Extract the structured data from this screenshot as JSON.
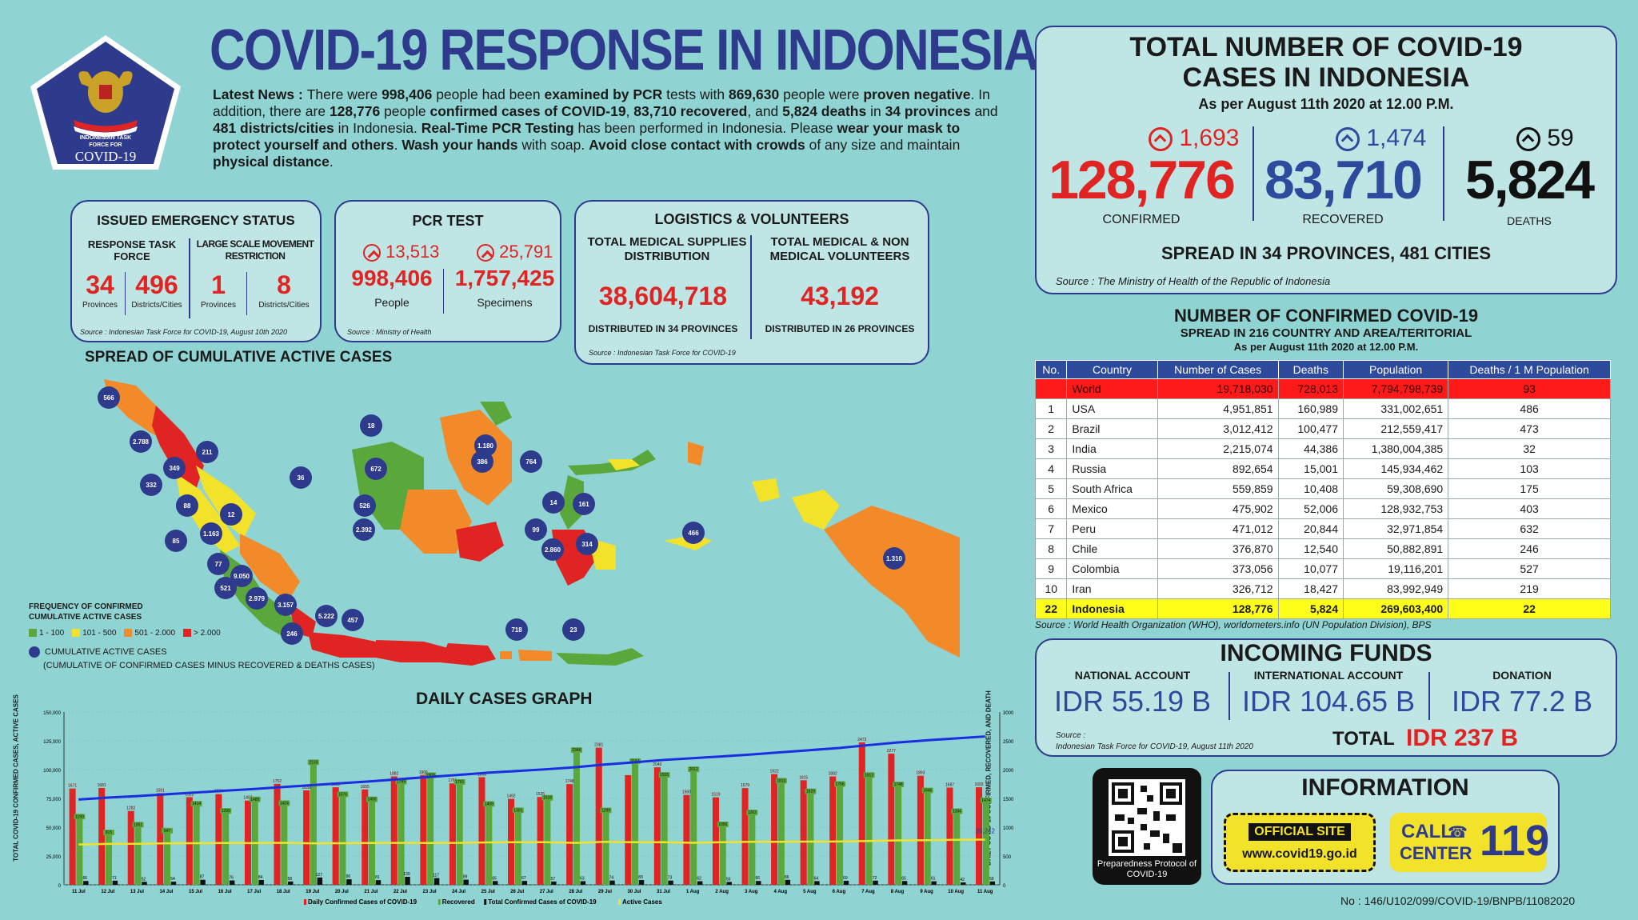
{
  "header": {
    "title": "COVID-19 RESPONSE IN INDONESIA",
    "logo_line1": "INDONESIAN TASK",
    "logo_line2": "FORCE FOR",
    "logo_line3": "COVID-19"
  },
  "news": {
    "lead": "Latest News : ",
    "p1": "There were ",
    "pcr_people": "998,406",
    "p2": " people had been ",
    "examined": "examined by PCR",
    "p3": " tests with ",
    "negative_count": "869,630",
    "p4": " people were ",
    "proven_negative": "proven negative",
    "p5": ". In addition, there are ",
    "confirmed": "128,776",
    "p6": " people ",
    "confirmed_cases_label": "confirmed cases of COVID-19",
    "p7": ", ",
    "recovered": "83,710 recovered",
    "p8": ", and ",
    "deaths": "5,824 deaths",
    "p9": " in ",
    "provinces": "34 provinces",
    "p10": " and ",
    "cities": "481 districts/cities",
    "p11": " in Indonesia. ",
    "rtpcr": "Real-Time PCR Testing",
    "p12": " has been performed in Indonesia. Please ",
    "mask": "wear your mask to protect yourself and others",
    "p13": ". ",
    "wash": "Wash your hands",
    "p14": " with soap. ",
    "avoid": "Avoid close contact with crowds",
    "p15": " of any size and maintain ",
    "distance": "physical distance",
    "p16": "."
  },
  "emergency": {
    "title": "ISSUED EMERGENCY STATUS",
    "col1_label": "RESPONSE TASK FORCE",
    "col2_label": "LARGE SCALE MOVEMENT RESTRICTION",
    "v1": "34",
    "l1": "Provinces",
    "v2": "496",
    "l2": "Districts/Cities",
    "v3": "1",
    "l3": "Provinces",
    "v4": "8",
    "l4": "Districts/Cities",
    "source": "Source : Indonesian Task Force for COVID-19, August 10th 2020"
  },
  "pcr": {
    "title": "PCR TEST",
    "people_change": "13,513",
    "people": "998,406",
    "people_label": "People",
    "spec_change": "25,791",
    "specimens": "1,757,425",
    "spec_label": "Specimens",
    "source": "Source : Ministry of Health"
  },
  "logistics": {
    "title": "LOGISTICS & VOLUNTEERS",
    "col1_label": "TOTAL MEDICAL SUPPLIES DISTRIBUTION",
    "col1_value": "38,604,718",
    "col1_note": "DISTRIBUTED IN 34 PROVINCES",
    "col2_label": "TOTAL MEDICAL & NON MEDICAL VOLUNTEERS",
    "col2_value": "43,192",
    "col2_note": "DISTRIBUTED IN 26 PROVINCES",
    "source": "Source : Indonesian Task Force for COVID-19"
  },
  "totals": {
    "title_line1": "TOTAL NUMBER OF COVID-19",
    "title_line2": "CASES IN INDONESIA",
    "as_of": "As per August 11th 2020 at 12.00 P.M.",
    "confirmed_change": "1,693",
    "confirmed": "128,776",
    "confirmed_label": "CONFIRMED",
    "recovered_change": "1,474",
    "recovered": "83,710",
    "recovered_label": "RECOVERED",
    "deaths_change": "59",
    "deaths": "5,824",
    "deaths_label": "DEATHS",
    "spread": "SPREAD IN 34 PROVINCES, 481 CITIES",
    "source": "Source : The Ministry of Health of the Republic of Indonesia"
  },
  "world_table": {
    "title": "NUMBER OF CONFIRMED COVID-19",
    "subtitle": "SPREAD IN 216 COUNTRY AND AREA/TERITORIAL",
    "as_of": "As per August 11th 2020 at 12.00 P.M.",
    "headers": [
      "No.",
      "Country",
      "Number of Cases",
      "Deaths",
      "Population",
      "Deaths / 1 M Population"
    ],
    "world": [
      "",
      "World",
      "19,718,030",
      "728,013",
      "7,794,798,739",
      "93"
    ],
    "rows": [
      [
        "1",
        "USA",
        "4,951,851",
        "160,989",
        "331,002,651",
        "486"
      ],
      [
        "2",
        "Brazil",
        "3,012,412",
        "100,477",
        "212,559,417",
        "473"
      ],
      [
        "3",
        "India",
        "2,215,074",
        "44,386",
        "1,380,004,385",
        "32"
      ],
      [
        "4",
        "Russia",
        "892,654",
        "15,001",
        "145,934,462",
        "103"
      ],
      [
        "5",
        "South Africa",
        "559,859",
        "10,408",
        "59,308,690",
        "175"
      ],
      [
        "6",
        "Mexico",
        "475,902",
        "52,006",
        "128,932,753",
        "403"
      ],
      [
        "7",
        "Peru",
        "471,012",
        "20,844",
        "32,971,854",
        "632"
      ],
      [
        "8",
        "Chile",
        "376,870",
        "12,540",
        "50,882,891",
        "246"
      ],
      [
        "9",
        "Colombia",
        "373,056",
        "10,077",
        "19,116,201",
        "527"
      ],
      [
        "10",
        "Iran",
        "326,712",
        "18,427",
        "83,992,949",
        "219"
      ]
    ],
    "indonesia": [
      "22",
      "Indonesia",
      "128,776",
      "5,824",
      "269,603,400",
      "22"
    ],
    "source": "Source : World Health Organization (WHO), worldometers.info (UN Population Division), BPS"
  },
  "funds": {
    "title": "INCOMING FUNDS",
    "national_label": "NATIONAL ACCOUNT",
    "national": "IDR 55.19 B",
    "international_label": "INTERNATIONAL ACCOUNT",
    "international": "IDR 104.65 B",
    "donation_label": "DONATION",
    "donation": "IDR 77.2 B",
    "source_line1": "Source :",
    "source_line2": "Indonesian Task Force for COVID-19, August 11th 2020",
    "total_label": "TOTAL",
    "total": "IDR 237 B"
  },
  "info": {
    "qr_caption": "Preparedness Protocol of COVID-19",
    "title": "INFORMATION",
    "official_label": "OFFICIAL SITE",
    "site": "www.covid19.go.id",
    "call_line1": "CALL",
    "call_line2": "CENTER",
    "call_number": "119",
    "doc_number": "No : 146/U102/099/COVID-19/BNPB/11082020"
  },
  "map": {
    "title": "SPREAD OF CUMULATIVE ACTIVE CASES",
    "legend_title_line1": "FREQUENCY OF CONFIRMED",
    "legend_title_line2": "CUMULATIVE ACTIVE CASES",
    "legend_items": [
      {
        "label": "1 - 100",
        "color": "#5aa83c"
      },
      {
        "label": "101 - 500",
        "color": "#f2e22a"
      },
      {
        "label": "501 - 2.000",
        "color": "#f28a2a"
      },
      {
        "label": "> 2.000",
        "color": "#e02424"
      }
    ],
    "circle_label": "CUMULATIVE ACTIVE CASES",
    "circle_note": "(CUMULATIVE OF CONFIRMED CASES MINUS RECOVERED & DEATHS CASES)",
    "bubbles": [
      "566",
      "2.788",
      "211",
      "349",
      "332",
      "88",
      "1.163",
      "85",
      "12",
      "77",
      "9.050",
      "521",
      "2.979",
      "3.157",
      "246",
      "5.222",
      "457",
      "36",
      "526",
      "2.392",
      "18",
      "672",
      "386",
      "1.180",
      "764",
      "14",
      "99",
      "2.860",
      "314",
      "161",
      "466",
      "1.310",
      "718",
      "23"
    ]
  },
  "chart_data": {
    "type": "bar",
    "title": "DAILY CASES GRAPH",
    "ylabel_left": "TOTAL COVID-19 CONFIRMED CASES, ACTIVE CASES",
    "ylabel_right": "DAILY COVID-19 CONFIRMED, RECOVERED, AND DEATH",
    "y_left_ticks": [
      "0",
      "25,000",
      "50,000",
      "75,000",
      "100,000",
      "125,000",
      "150,000"
    ],
    "y_right_ticks": [
      "0",
      "500",
      "1000",
      "1500",
      "2000",
      "2500",
      "3000"
    ],
    "categories": [
      "11 Jul",
      "12 Jul",
      "13 Jul",
      "14 Jul",
      "15 Jul",
      "16 Jul",
      "17 Jul",
      "18 Jul",
      "19 Jul",
      "20 Jul",
      "21 Jul",
      "22 Jul",
      "23 Jul",
      "24 Jul",
      "25 Jul",
      "26 Jul",
      "27 Jul",
      "28 Jul",
      "29 Jul",
      "30 Jul",
      "31 Jul",
      "1 Aug",
      "2 Aug",
      "3 Aug",
      "4 Aug",
      "5 Aug",
      "6 Aug",
      "7 Aug",
      "8 Aug",
      "9 Aug",
      "10 Aug",
      "11 Aug"
    ],
    "series": [
      {
        "name": "Daily Confirmed Cases of COVID-19",
        "color": "#e02424",
        "values": [
          1671,
          1681,
          1282,
          1591,
          1522,
          1574,
          1462,
          1752,
          1639,
          1693,
          1655,
          1882,
          1906,
          1761,
          1868,
          1492,
          1525,
          1748,
          2381,
          1904,
          2040,
          1560,
          1519,
          1679,
          1922,
          1815,
          1882,
          2473,
          2277,
          1893,
          1687,
          1693
        ],
        "labels": [
          "1671",
          "1681",
          "1282",
          "1591",
          "1522",
          "1574",
          "1462",
          "1752",
          "1639",
          "1693",
          "1655",
          "1882",
          "1906",
          "1761",
          "1868",
          "1492",
          "1525",
          "1748",
          "2381",
          "",
          "2040",
          "1560",
          "1519",
          "1679",
          "1922",
          "1815",
          "1882",
          "2473",
          "2277",
          "1893",
          "1687",
          "1693"
        ]
      },
      {
        "name": "Recovered",
        "color": "#5aa83c",
        "values": [
          1190,
          915,
          1051,
          947,
          1414,
          1290,
          1489,
          1424,
          2133,
          1576,
          1490,
          1799,
          1909,
          1791,
          1409,
          1301,
          1518,
          2346,
          1299,
          2154,
          1915,
          2012,
          1056,
          1262,
          1813,
          1629,
          1756,
          1912,
          1748,
          1646,
          1284,
          1474
        ],
        "labels": [
          "1190",
          "915",
          "1051",
          "947",
          "1414",
          "1290",
          "1489",
          "1424",
          "2133",
          "1576",
          "1490",
          "1799",
          "1909",
          "1791",
          "1409",
          "1301",
          "1518",
          "2346",
          "1299",
          "2154",
          "1915",
          "2012",
          "1056",
          "1262",
          "1813",
          "1629",
          "1756",
          "1912",
          "1748",
          "1646",
          "1284",
          "1474"
        ]
      },
      {
        "name": "Deaths",
        "color": "#111111",
        "values": [
          66,
          71,
          52,
          54,
          87,
          76,
          84,
          58,
          127,
          96,
          81,
          139,
          117,
          89,
          65,
          67,
          57,
          63,
          74,
          83,
          73,
          62,
          50,
          66,
          86,
          64,
          69,
          72,
          65,
          61,
          42,
          59
        ],
        "labels": [
          "66",
          "71",
          "52",
          "54",
          "87",
          "76",
          "84",
          "58",
          "127",
          "96",
          "81",
          "139",
          "117",
          "89",
          "65",
          "67",
          "57",
          "63",
          "74",
          "83",
          "73",
          "62",
          "50",
          "66",
          "86",
          "64",
          "69",
          "72",
          "65",
          "61",
          "42",
          "59"
        ]
      },
      {
        "name": "Total Confirmed Cases of COVID-19",
        "color": "#1a2ee0",
        "axis": "left",
        "values": [
          74018,
          75699,
          76981,
          78572,
          80094,
          81668,
          83130,
          84882,
          86521,
          88214,
          89869,
          91751,
          93657,
          95418,
          97286,
          98778,
          100303,
          102051,
          104432,
          106336,
          108376,
          109936,
          111455,
          113134,
          115056,
          116871,
          118753,
          121226,
          123503,
          125396,
          127083,
          128776
        ]
      },
      {
        "name": "Active Cases",
        "color": "#f2e22a",
        "axis": "left",
        "annotation": "39,242",
        "values": [
          35000,
          35500,
          35600,
          36000,
          36100,
          36300,
          36200,
          36500,
          36000,
          36100,
          36300,
          36400,
          36300,
          36400,
          36800,
          37000,
          37000,
          36400,
          37300,
          37000,
          37000,
          36500,
          37000,
          37300,
          37300,
          37500,
          37600,
          38000,
          38500,
          38700,
          39100,
          39242
        ]
      }
    ],
    "legend": [
      "Daily Confirmed Cases of COVID-19",
      "Recovered",
      "Total Confirmed Cases of COVID-19",
      "Active Cases"
    ]
  }
}
